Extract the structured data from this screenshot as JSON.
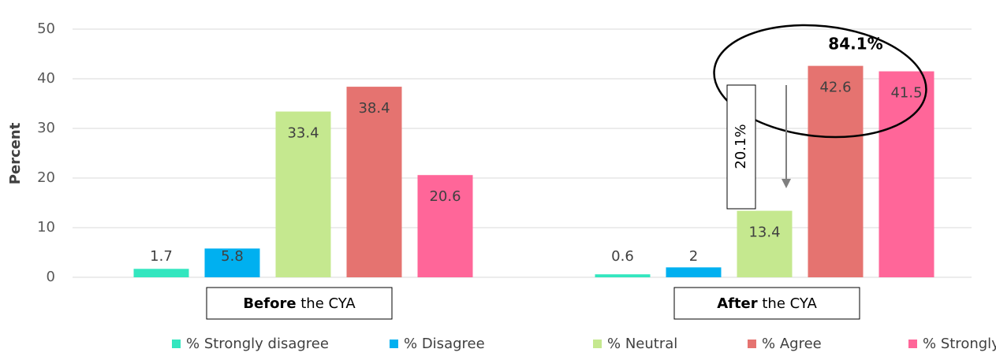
{
  "chart_data": {
    "type": "bar",
    "y_label": "Percent",
    "categories": [
      "Before the CYA",
      "After the CYA"
    ],
    "series": [
      {
        "name": "% Strongly disagree",
        "color": "#33E6BF",
        "values": [
          1.7,
          0.6
        ]
      },
      {
        "name": "% Disagree",
        "color": "#00B0F0",
        "values": [
          5.8,
          2
        ]
      },
      {
        "name": "% Neutral",
        "color": "#C5E88F",
        "values": [
          33.4,
          13.4
        ]
      },
      {
        "name": "% Agree",
        "color": "#E57370",
        "values": [
          38.4,
          42.6
        ]
      },
      {
        "name": "% Strongly agree",
        "color": "#FF6699",
        "values": [
          20.6,
          41.5
        ]
      }
    ],
    "ylim": [
      0,
      50
    ],
    "yticks": [
      0,
      10,
      20,
      30,
      40,
      50
    ],
    "grid": true,
    "annotations": [
      "84.1%",
      "20.1%"
    ]
  }
}
